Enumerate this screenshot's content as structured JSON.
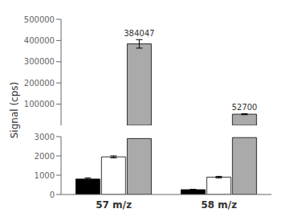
{
  "chart_data": [
    {
      "type": "bar",
      "categories": [
        null,
        null
      ],
      "series": [
        {
          "color": "#aaaaaa",
          "values": [
            384047,
            52700
          ],
          "errors": [
            20000,
            2500
          ]
        }
      ],
      "ylim": [
        0,
        500000
      ],
      "yticks": [
        100000,
        200000,
        300000,
        400000,
        500000
      ],
      "data_labels": true,
      "tick_labels": "y"
    },
    {
      "type": "bar",
      "categories": [
        "57 m/z",
        "58 m/z"
      ],
      "series": [
        {
          "color": "#000000",
          "values": [
            800,
            250
          ],
          "errors": [
            60,
            20
          ]
        },
        {
          "color": "#ffffff",
          "values": [
            1950,
            900
          ],
          "errors": [
            50,
            40
          ]
        },
        {
          "color": "#aaaaaa",
          "values": [
            2900,
            2950
          ]
        }
      ],
      "ylim": [
        0,
        3000
      ],
      "yticks": [
        0,
        1000,
        2000,
        3000
      ],
      "y_label": "Signal (cps)"
    }
  ]
}
